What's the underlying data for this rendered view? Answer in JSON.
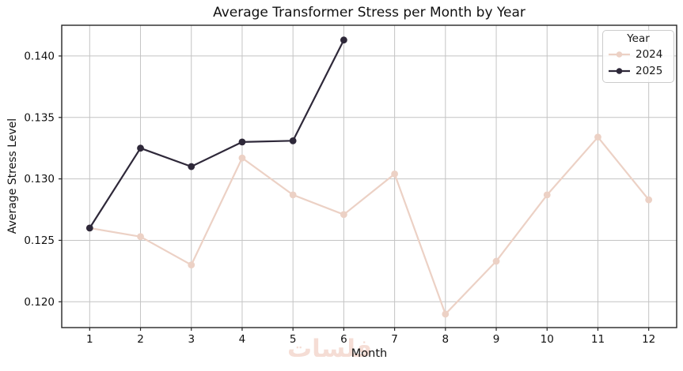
{
  "watermark": {
    "text": "فلسات"
  },
  "chart_data": {
    "type": "line",
    "title": "Average Transformer Stress per Month by Year",
    "xlabel": "Month",
    "ylabel": "Average Stress Level",
    "xlim": [
      0.45,
      12.55
    ],
    "ylim": [
      0.1179,
      0.1425
    ],
    "grid": true,
    "background": "#ffffff",
    "grid_color": "#c4c4c4",
    "spine_color": "#262626",
    "xticks": [
      {
        "value": 1,
        "label": "1"
      },
      {
        "value": 2,
        "label": "2"
      },
      {
        "value": 3,
        "label": "3"
      },
      {
        "value": 4,
        "label": "4"
      },
      {
        "value": 5,
        "label": "5"
      },
      {
        "value": 6,
        "label": "6"
      },
      {
        "value": 7,
        "label": "7"
      },
      {
        "value": 8,
        "label": "8"
      },
      {
        "value": 9,
        "label": "9"
      },
      {
        "value": 10,
        "label": "10"
      },
      {
        "value": 11,
        "label": "11"
      },
      {
        "value": 12,
        "label": "12"
      }
    ],
    "yticks": [
      {
        "value": 0.12,
        "label": "0.120"
      },
      {
        "value": 0.125,
        "label": "0.125"
      },
      {
        "value": 0.13,
        "label": "0.130"
      },
      {
        "value": 0.135,
        "label": "0.135"
      },
      {
        "value": 0.14,
        "label": "0.140"
      }
    ],
    "legend": {
      "title": "Year",
      "position": "upper right"
    },
    "series": [
      {
        "name": "2024",
        "color": "#ecd1c5",
        "marker": "o",
        "x": [
          1,
          2,
          3,
          4,
          5,
          6,
          7,
          8,
          9,
          10,
          11,
          12
        ],
        "y": [
          0.126,
          0.1253,
          0.123,
          0.1317,
          0.1287,
          0.1271,
          0.1304,
          0.119,
          0.1233,
          0.1287,
          0.1334,
          0.1283
        ]
      },
      {
        "name": "2025",
        "color": "#2e2839",
        "marker": "o",
        "x": [
          1,
          2,
          3,
          4,
          5,
          6
        ],
        "y": [
          0.126,
          0.1325,
          0.131,
          0.133,
          0.1331,
          0.1413
        ]
      }
    ]
  }
}
